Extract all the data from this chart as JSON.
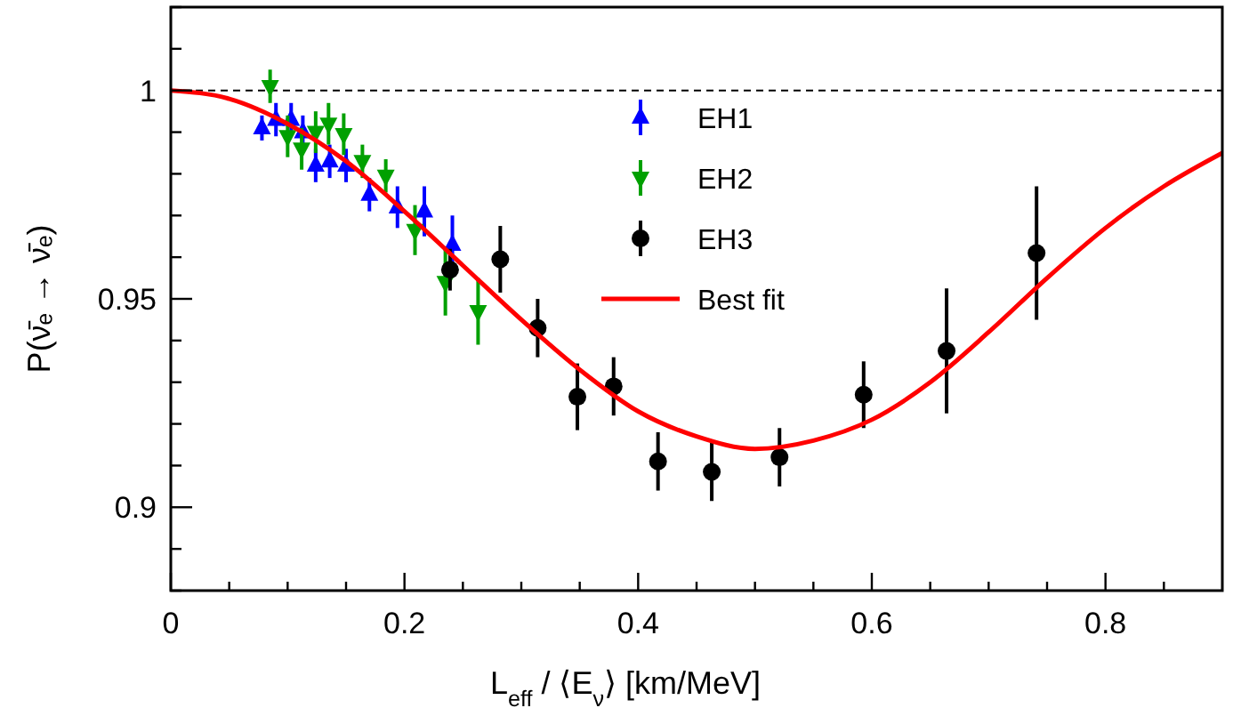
{
  "chart_data": {
    "type": "scatter",
    "xlabel": "L$_{eff}$ / ⟨E$_{ν}$⟩ [km/MeV]",
    "ylabel": "P(ν̄ₑ → ν̄ₑ)",
    "xlim": [
      0,
      0.9
    ],
    "ylim": [
      0.88,
      1.02
    ],
    "xticks": [
      0,
      {
        "value": 0.05,
        "label": null
      },
      0.2,
      {
        "value": 0.1,
        "label": null
      },
      {
        "value": 0.15,
        "label": null
      },
      {
        "value": 0.25,
        "label": null
      },
      0.4,
      {
        "value": 0.3,
        "label": null
      },
      {
        "value": 0.35,
        "label": null
      },
      {
        "value": 0.45,
        "label": null
      },
      0.6,
      {
        "value": 0.5,
        "label": null
      },
      {
        "value": 0.55,
        "label": null
      },
      {
        "value": 0.65,
        "label": null
      },
      0.8,
      {
        "value": 0.7,
        "label": null
      },
      {
        "value": 0.75,
        "label": null
      },
      {
        "value": 0.85,
        "label": null
      }
    ],
    "yticks": [
      {
        "value": 0.88,
        "label": null
      },
      {
        "value": 0.89,
        "label": null
      },
      0.9,
      {
        "value": 0.91,
        "label": null
      },
      {
        "value": 0.92,
        "label": null
      },
      {
        "value": 0.93,
        "label": null
      },
      {
        "value": 0.94,
        "label": null
      },
      0.95,
      {
        "value": 0.96,
        "label": null
      },
      {
        "value": 0.97,
        "label": null
      },
      {
        "value": 0.98,
        "label": null
      },
      {
        "value": 0.99,
        "label": null
      },
      1,
      {
        "value": 1.01,
        "label": null
      },
      {
        "value": 1.02,
        "label": null
      }
    ],
    "grid": false,
    "legend": "top",
    "ref_lines": [
      {
        "axis": "y",
        "value": 1,
        "color": "#000000",
        "line_style": "dashed"
      }
    ],
    "series": [
      {
        "name": "EH1",
        "color": "#0000ff",
        "marker": "triangle",
        "x": [
          0.078,
          0.09,
          0.103,
          0.113,
          0.124,
          0.136,
          0.15,
          0.17,
          0.194,
          0.217,
          0.241
        ],
        "values": [
          0.991,
          0.993,
          0.993,
          0.99,
          0.982,
          0.983,
          0.982,
          0.975,
          0.972,
          0.971,
          0.963
        ],
        "errors": [
          0.003,
          0.004,
          0.004,
          0.004,
          0.004,
          0.004,
          0.004,
          0.004,
          0.005,
          0.006,
          0.007
        ]
      },
      {
        "name": "EH2",
        "color": "#00a000",
        "marker": "triangle-down",
        "x": [
          0.085,
          0.1,
          0.112,
          0.124,
          0.135,
          0.148,
          0.164,
          0.184,
          0.209,
          0.235,
          0.263
        ],
        "values": [
          1.001,
          0.989,
          0.986,
          0.99,
          0.992,
          0.9895,
          0.983,
          0.9795,
          0.9665,
          0.954,
          0.947
        ],
        "errors": [
          0.004,
          0.005,
          0.005,
          0.005,
          0.005,
          0.005,
          0.004,
          0.004,
          0.006,
          0.008,
          0.008
        ]
      },
      {
        "name": "EH3",
        "color": "#000000",
        "marker": "circle",
        "x": [
          0.239,
          0.282,
          0.314,
          0.348,
          0.379,
          0.417,
          0.463,
          0.521,
          0.593,
          0.664,
          0.741
        ],
        "values": [
          0.957,
          0.9595,
          0.943,
          0.9265,
          0.929,
          0.911,
          0.9085,
          0.912,
          0.927,
          0.9375,
          0.961
        ],
        "errors": [
          0.005,
          0.008,
          0.007,
          0.008,
          0.007,
          0.007,
          0.007,
          0.007,
          0.008,
          0.015,
          0.016
        ]
      },
      {
        "name": "Best fit",
        "type": "line",
        "color": "#ff0000",
        "marker": "none",
        "line_style": "solid",
        "x": [
          0,
          0.05,
          0.1,
          0.15,
          0.2,
          0.25,
          0.3,
          0.35,
          0.4,
          0.45,
          0.5,
          0.55,
          0.6,
          0.65,
          0.7,
          0.75,
          0.8,
          0.85,
          0.9
        ],
        "values": [
          1,
          0.998,
          0.992,
          0.983,
          0.971,
          0.958,
          0.945,
          0.933,
          0.923,
          0.917,
          0.914,
          0.916,
          0.921,
          0.93,
          0.942,
          0.955,
          0.967,
          0.977,
          0.985
        ]
      }
    ]
  }
}
